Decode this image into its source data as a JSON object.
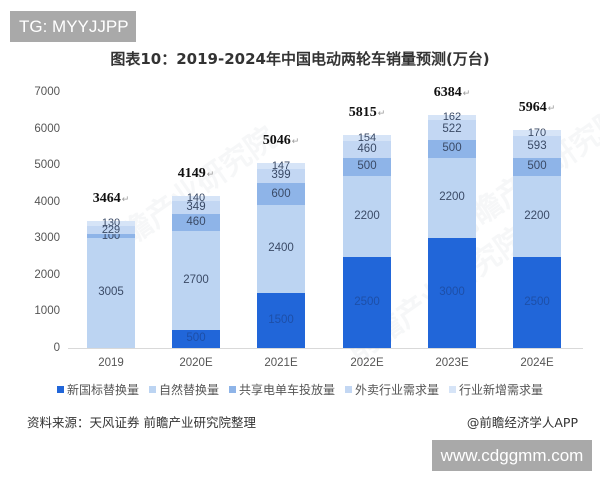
{
  "overlays": {
    "top_tag": "TG: MYYJJPP",
    "bottom_tag": "www.cdggmm.com",
    "watermark_text": "前瞻产业研究院"
  },
  "chart_data": {
    "type": "bar",
    "stacked": true,
    "title": "图表10：2019-2024年中国电动两轮车销量预测(万台)",
    "xlabel": "",
    "ylabel": "",
    "ylim": [
      0,
      7000
    ],
    "yticks": [
      0,
      1000,
      2000,
      3000,
      4000,
      5000,
      6000,
      7000
    ],
    "grid": false,
    "legend_position": "bottom",
    "categories": [
      "2019",
      "2020E",
      "2021E",
      "2022E",
      "2023E",
      "2024E"
    ],
    "series": [
      {
        "name": "新国标替换量",
        "color": "#2166d9",
        "values": [
          0,
          500,
          1500,
          2500,
          3000,
          2500
        ]
      },
      {
        "name": "自然替换量",
        "color": "#bcd4f2",
        "values": [
          3005,
          2700,
          2400,
          2200,
          2200,
          2200
        ]
      },
      {
        "name": "共享电单车投放量",
        "color": "#8eb4e8",
        "values": [
          100,
          460,
          600,
          500,
          500,
          500
        ]
      },
      {
        "name": "外卖行业需求量",
        "color": "#c3d7f3",
        "values": [
          229,
          349,
          399,
          460,
          522,
          593
        ]
      },
      {
        "name": "行业新增需求量",
        "color": "#d6e4f7",
        "values": [
          130,
          140,
          147,
          154,
          162,
          170
        ]
      }
    ],
    "totals": [
      "3464",
      "4149",
      "5046",
      "5815",
      "6384",
      "5964"
    ],
    "source": "资料来源：天风证券 前瞻产业研究院整理",
    "credit": "@前瞻经济学人APP"
  }
}
